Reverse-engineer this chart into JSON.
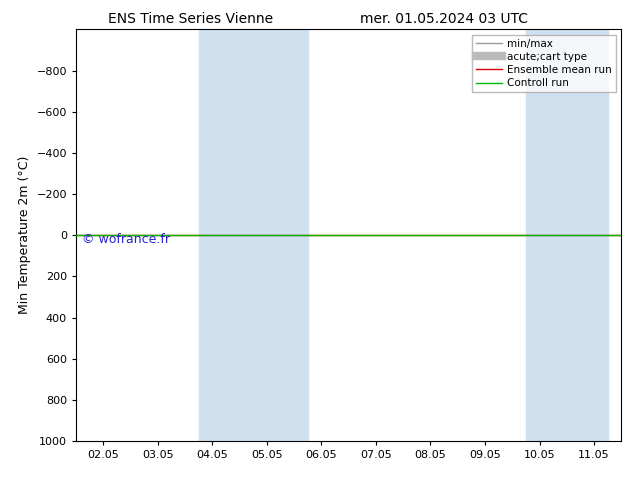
{
  "title_left": "ENS Time Series Vienne",
  "title_right": "mer. 01.05.2024 03 UTC",
  "ylabel": "Min Temperature 2m (°C)",
  "ylim_bottom": 1000,
  "ylim_top": -1000,
  "yticks": [
    -800,
    -600,
    -400,
    -200,
    0,
    200,
    400,
    600,
    800,
    1000
  ],
  "xtick_labels": [
    "02.05",
    "03.05",
    "04.05",
    "05.05",
    "06.05",
    "07.05",
    "08.05",
    "09.05",
    "10.05",
    "11.05"
  ],
  "xlim": [
    -0.5,
    9.5
  ],
  "shade_bands": [
    {
      "xmin": 1.75,
      "xmax": 3.75,
      "color": "#cfe0ef"
    },
    {
      "xmin": 7.75,
      "xmax": 9.25,
      "color": "#cfe0ef"
    }
  ],
  "control_run_y": 0,
  "control_run_color": "#00bb00",
  "ensemble_mean_color": "#dd0000",
  "watermark": "© wofrance.fr",
  "watermark_color": "#0000cc",
  "background_color": "#ffffff",
  "plot_bg_color": "#ffffff",
  "legend_entries": [
    {
      "label": "min/max",
      "color": "#999999",
      "lw": 1
    },
    {
      "label": "acute;cart type",
      "color": "#bbbbbb",
      "lw": 6
    },
    {
      "label": "Ensemble mean run",
      "color": "#dd0000",
      "lw": 1
    },
    {
      "label": "Controll run",
      "color": "#00bb00",
      "lw": 1
    }
  ],
  "title_fontsize": 10,
  "ylabel_fontsize": 9,
  "tick_fontsize": 8,
  "legend_fontsize": 7.5
}
